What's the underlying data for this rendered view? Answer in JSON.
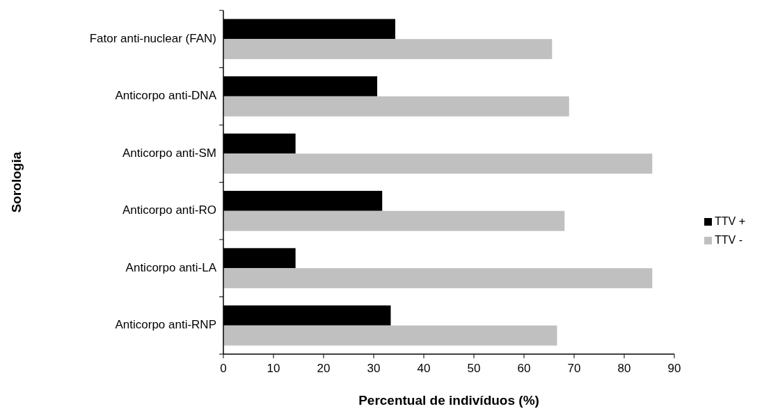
{
  "chart_data": {
    "type": "bar",
    "orientation": "horizontal",
    "xlabel": "Percentual de indivíduos (%)",
    "ylabel": "Sorologia",
    "categories": [
      "Fator anti-nuclear (FAN)",
      "Anticorpo anti-DNA",
      "Anticorpo anti-SM",
      "Anticorpo anti-RO",
      "Anticorpo anti-LA",
      "Anticorpo anti-RNP"
    ],
    "series": [
      {
        "name": "TTV +",
        "color": "#000000",
        "values": [
          34.3,
          30.7,
          14.4,
          31.7,
          14.4,
          33.4
        ]
      },
      {
        "name": "TTV -",
        "color": "#c0c0c0",
        "values": [
          65.6,
          69.0,
          85.6,
          68.1,
          85.6,
          66.6
        ]
      }
    ],
    "xlim": [
      0,
      90
    ],
    "xticks": [
      0,
      10,
      20,
      30,
      40,
      50,
      60,
      70,
      80,
      90
    ],
    "grid": false,
    "legend": "right"
  }
}
